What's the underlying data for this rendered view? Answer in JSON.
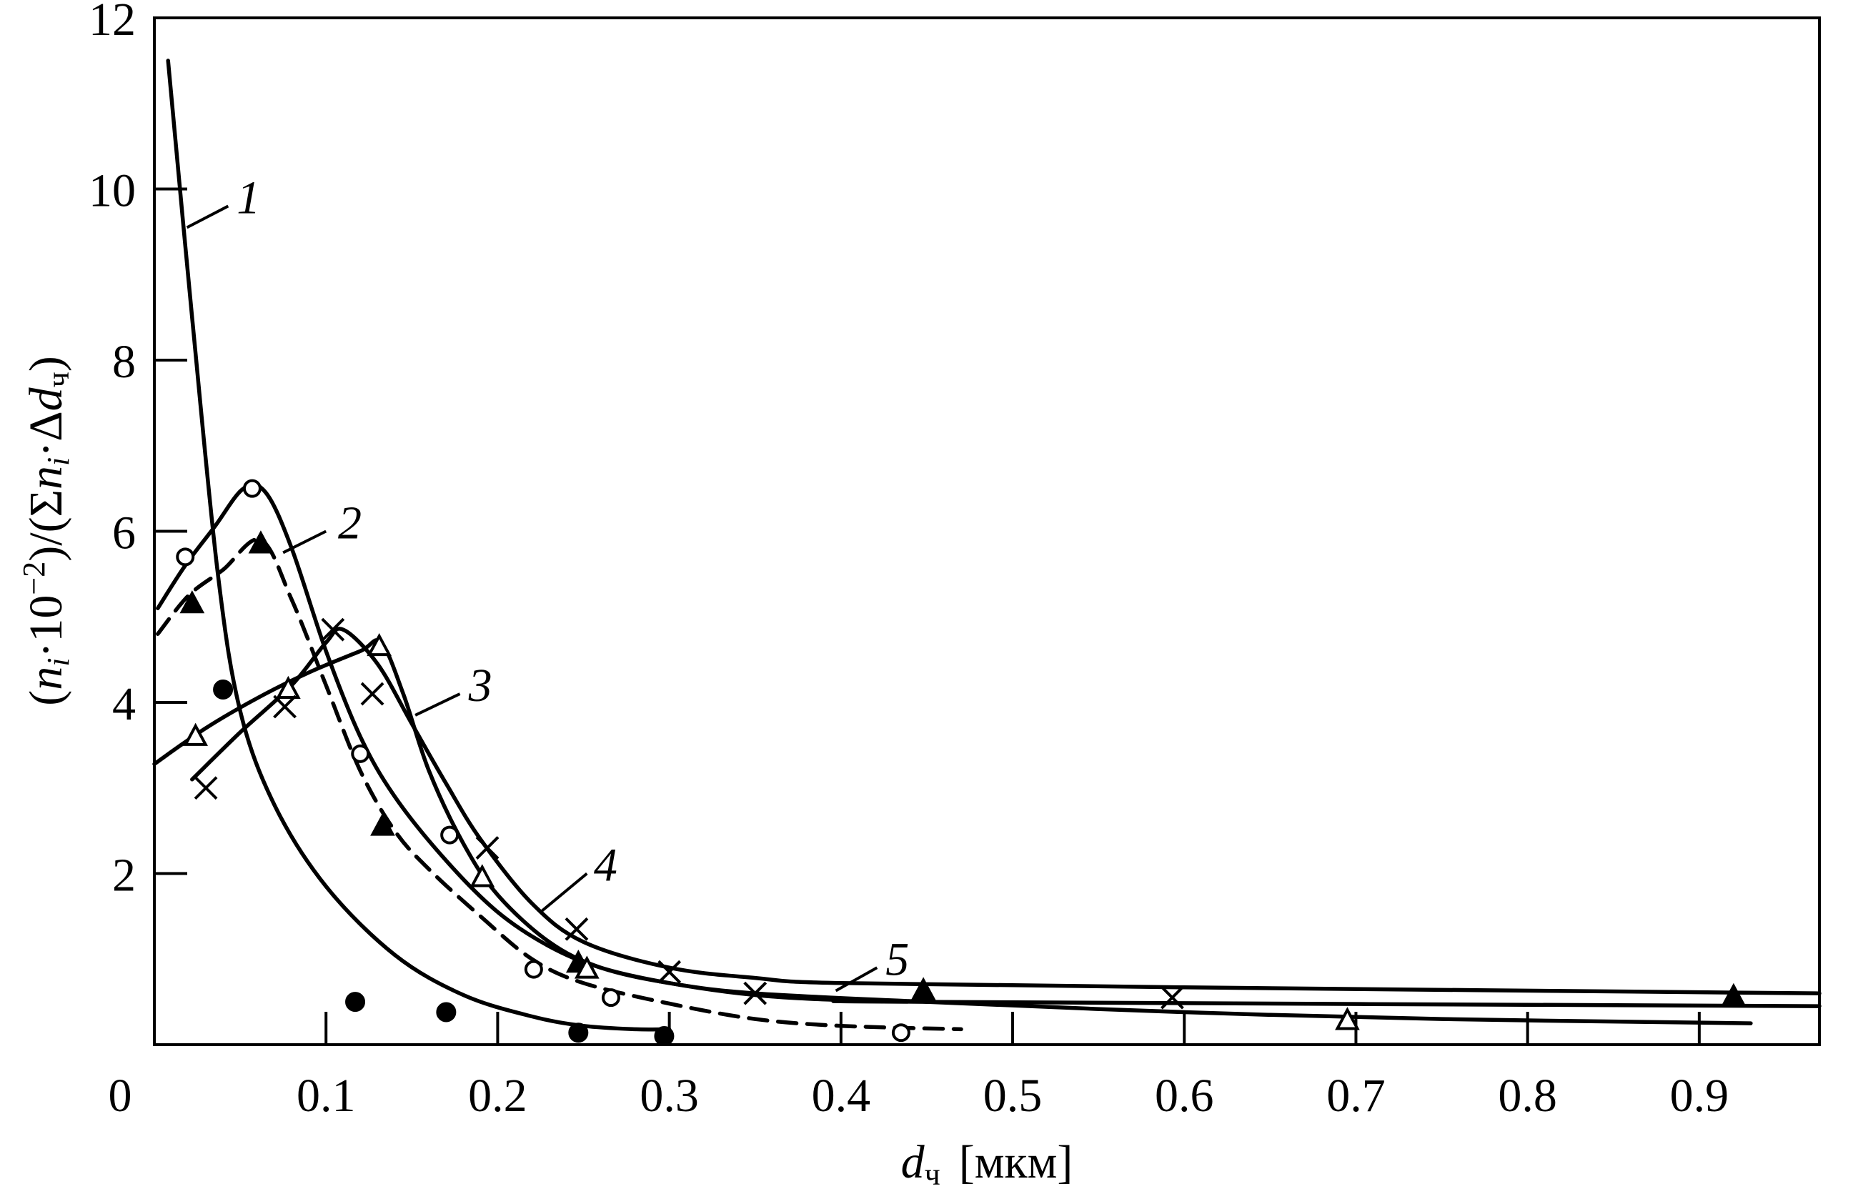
{
  "chart_data": {
    "type": "scatter",
    "title": "",
    "xlabel": "d",
    "xlabel_sub": "ч",
    "xlabel_unit": "[мкм]",
    "ylabel": "(n_i·10^−2)/(Σn_i·Δd_ч)",
    "xlim": [
      0,
      0.97
    ],
    "ylim": [
      0,
      12
    ],
    "x_ticks": [
      0.1,
      0.2,
      0.3,
      0.4,
      0.5,
      0.6,
      0.7,
      0.8,
      0.9
    ],
    "x_tick_labels": [
      "0.1",
      "0.2",
      "0.3",
      "0.4",
      "0.5",
      "0.6",
      "0.7",
      "0.8",
      "0.9"
    ],
    "origin_label": "0",
    "y_ticks": [
      2,
      4,
      6,
      8,
      10,
      12
    ],
    "y_tick_labels": [
      "2",
      "4",
      "6",
      "8",
      "10",
      "12"
    ],
    "grid": false,
    "curve_labels": [
      {
        "text": "1",
        "x": 0.048,
        "y": 9.9,
        "lx1": 0.019,
        "ly1": 9.55,
        "lx2": 0.043,
        "ly2": 9.8
      },
      {
        "text": "2",
        "x": 0.107,
        "y": 6.1,
        "lx1": 0.075,
        "ly1": 5.75,
        "lx2": 0.1,
        "ly2": 6.0
      },
      {
        "text": "3",
        "x": 0.183,
        "y": 4.2,
        "lx1": 0.152,
        "ly1": 3.85,
        "lx2": 0.178,
        "ly2": 4.1
      },
      {
        "text": "4",
        "x": 0.256,
        "y": 2.1,
        "lx1": 0.225,
        "ly1": 1.55,
        "lx2": 0.252,
        "ly2": 2.0
      },
      {
        "text": "5",
        "x": 0.426,
        "y": 1.0,
        "lx1": 0.397,
        "ly1": 0.63,
        "lx2": 0.421,
        "ly2": 0.9
      }
    ],
    "series": [
      {
        "marker": "filled-circle",
        "dashed": false,
        "curve": [
          [
            0.008,
            11.5
          ],
          [
            0.022,
            8.5
          ],
          [
            0.037,
            5.5
          ],
          [
            0.05,
            3.9
          ],
          [
            0.07,
            2.8
          ],
          [
            0.1,
            1.85
          ],
          [
            0.14,
            1.05
          ],
          [
            0.18,
            0.58
          ],
          [
            0.22,
            0.33
          ],
          [
            0.25,
            0.22
          ],
          [
            0.28,
            0.18
          ],
          [
            0.3,
            0.18
          ]
        ],
        "points": [
          [
            0.04,
            4.15
          ],
          [
            0.117,
            0.5
          ],
          [
            0.17,
            0.38
          ],
          [
            0.247,
            0.14
          ],
          [
            0.297,
            0.1
          ]
        ]
      },
      {
        "marker": "open-circle",
        "dashed": false,
        "curve": [
          [
            0.002,
            5.1
          ],
          [
            0.018,
            5.6
          ],
          [
            0.035,
            6.05
          ],
          [
            0.052,
            6.5
          ],
          [
            0.065,
            6.45
          ],
          [
            0.08,
            5.8
          ],
          [
            0.1,
            4.6
          ],
          [
            0.12,
            3.6
          ],
          [
            0.14,
            2.9
          ],
          [
            0.17,
            2.15
          ],
          [
            0.2,
            1.55
          ],
          [
            0.23,
            1.15
          ],
          [
            0.26,
            0.9
          ],
          [
            0.3,
            0.72
          ],
          [
            0.35,
            0.58
          ],
          [
            0.4,
            0.52
          ],
          [
            0.45,
            0.5
          ],
          [
            0.97,
            0.45
          ]
        ],
        "points": [
          [
            0.018,
            5.7
          ],
          [
            0.057,
            6.5
          ],
          [
            0.12,
            3.4
          ],
          [
            0.172,
            2.45
          ],
          [
            0.221,
            0.88
          ],
          [
            0.266,
            0.55
          ],
          [
            0.435,
            0.14
          ]
        ]
      },
      {
        "marker": "filled-triangle",
        "dashed": true,
        "curve": [
          [
            0.002,
            4.8
          ],
          [
            0.02,
            5.25
          ],
          [
            0.04,
            5.55
          ],
          [
            0.062,
            5.9
          ],
          [
            0.08,
            5.2
          ],
          [
            0.1,
            4.2
          ],
          [
            0.12,
            3.2
          ],
          [
            0.14,
            2.5
          ],
          [
            0.16,
            2.05
          ],
          [
            0.19,
            1.5
          ],
          [
            0.22,
            1.0
          ],
          [
            0.25,
            0.72
          ],
          [
            0.3,
            0.48
          ],
          [
            0.35,
            0.3
          ],
          [
            0.4,
            0.22
          ],
          [
            0.47,
            0.18
          ]
        ],
        "points": [
          [
            0.022,
            5.15
          ],
          [
            0.062,
            5.85
          ],
          [
            0.133,
            2.55
          ],
          [
            0.247,
            0.95
          ],
          [
            0.448,
            0.63
          ],
          [
            0.92,
            0.56
          ]
        ]
      },
      {
        "marker": "open-triangle",
        "dashed": false,
        "curve": [
          [
            0.0,
            3.28
          ],
          [
            0.03,
            3.7
          ],
          [
            0.06,
            4.05
          ],
          [
            0.09,
            4.35
          ],
          [
            0.12,
            4.6
          ],
          [
            0.132,
            4.7
          ],
          [
            0.145,
            4.1
          ],
          [
            0.16,
            3.2
          ],
          [
            0.18,
            2.35
          ],
          [
            0.2,
            1.75
          ],
          [
            0.23,
            1.2
          ],
          [
            0.26,
            0.9
          ],
          [
            0.3,
            0.72
          ],
          [
            0.35,
            0.6
          ],
          [
            0.45,
            0.5
          ],
          [
            0.6,
            0.38
          ],
          [
            0.75,
            0.3
          ],
          [
            0.93,
            0.25
          ]
        ],
        "points": [
          [
            0.024,
            3.6
          ],
          [
            0.078,
            4.15
          ],
          [
            0.131,
            4.65
          ],
          [
            0.191,
            1.95
          ],
          [
            0.252,
            0.88
          ],
          [
            0.695,
            0.28
          ]
        ]
      },
      {
        "marker": "cross",
        "dashed": false,
        "curve": [
          [
            0.022,
            3.1
          ],
          [
            0.05,
            3.65
          ],
          [
            0.08,
            4.2
          ],
          [
            0.1,
            4.7
          ],
          [
            0.11,
            4.85
          ],
          [
            0.13,
            4.45
          ],
          [
            0.15,
            3.75
          ],
          [
            0.17,
            3.05
          ],
          [
            0.19,
            2.4
          ],
          [
            0.22,
            1.65
          ],
          [
            0.25,
            1.2
          ],
          [
            0.3,
            0.9
          ],
          [
            0.35,
            0.78
          ],
          [
            0.4,
            0.72
          ],
          [
            0.6,
            0.67
          ],
          [
            0.97,
            0.6
          ]
        ],
        "points": [
          [
            0.03,
            3.0
          ],
          [
            0.076,
            3.95
          ],
          [
            0.104,
            4.85
          ],
          [
            0.127,
            4.1
          ],
          [
            0.194,
            2.3
          ],
          [
            0.246,
            1.35
          ],
          [
            0.3,
            0.85
          ],
          [
            0.35,
            0.6
          ],
          [
            0.593,
            0.55
          ]
        ]
      }
    ]
  }
}
